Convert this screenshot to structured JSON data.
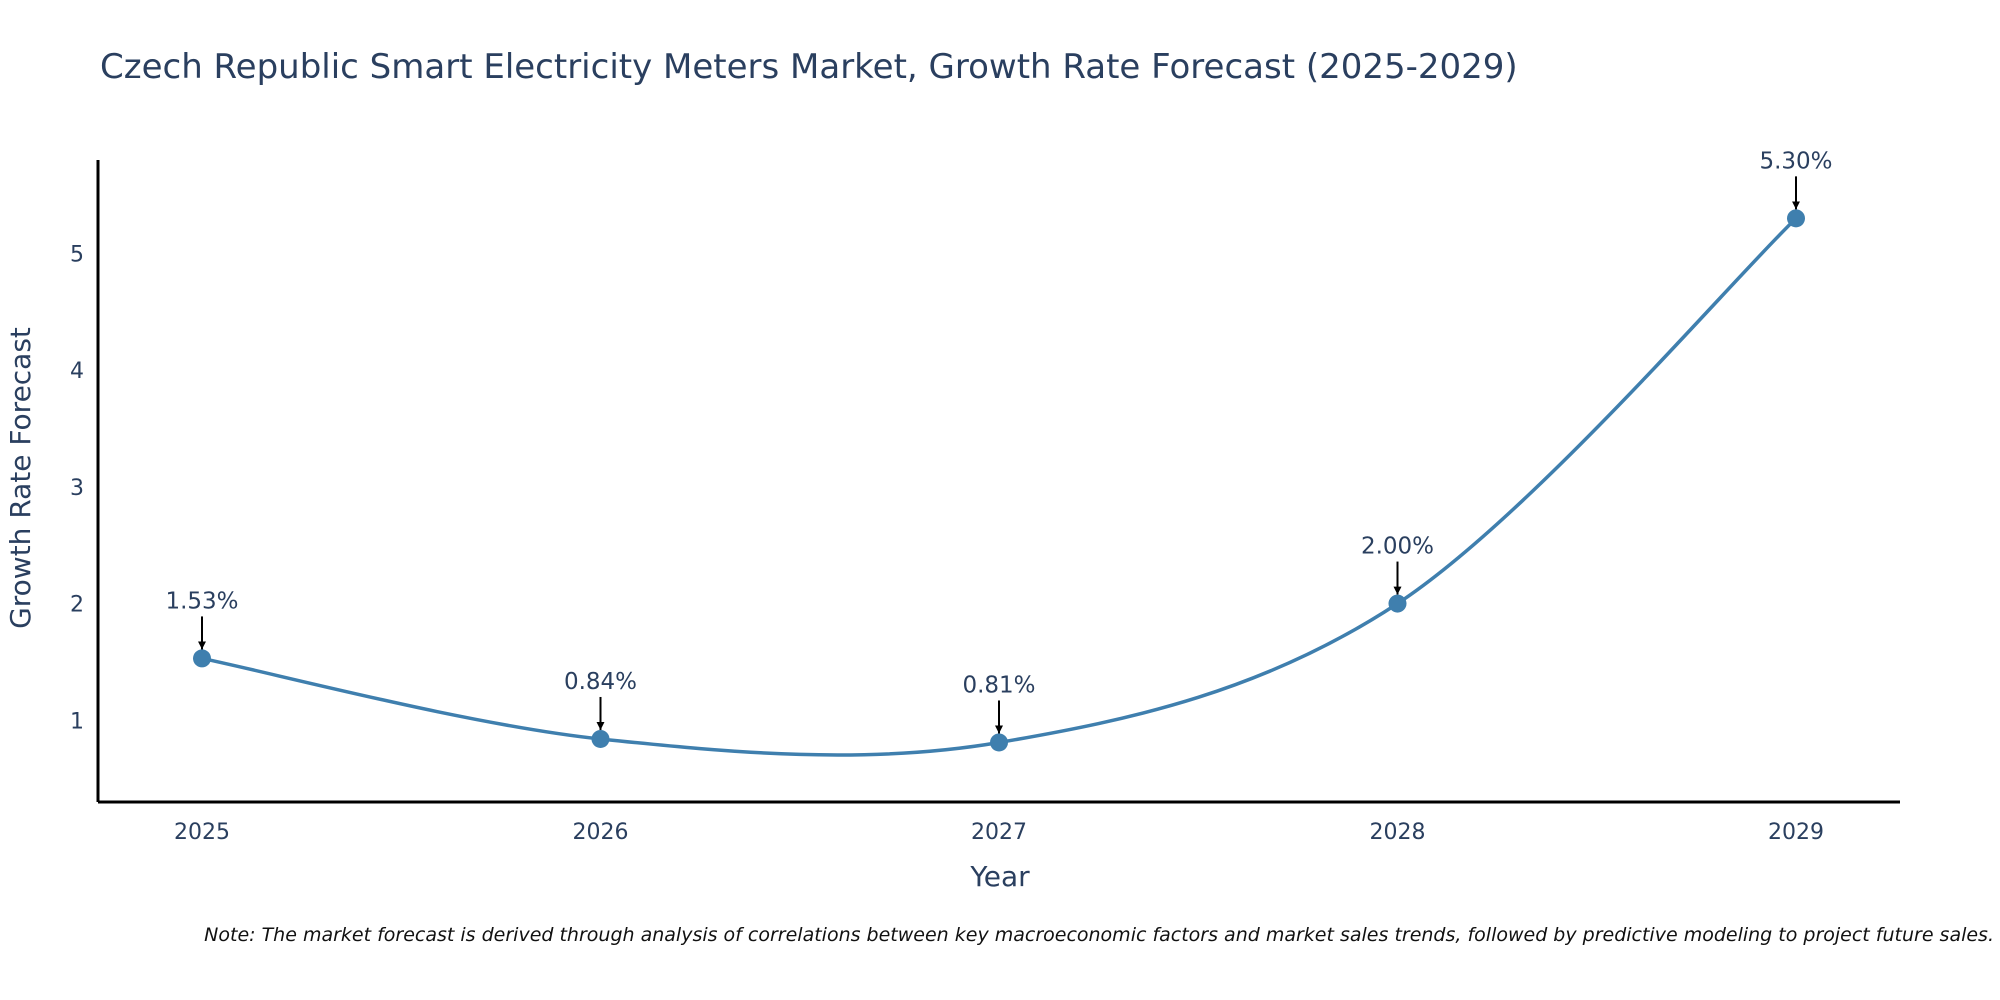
{
  "chart_data": {
    "type": "line",
    "title": "Czech Republic Smart Electricity Meters Market, Growth Rate Forecast (2025-2029)",
    "xlabel": "Year",
    "ylabel": "Growth Rate Forecast",
    "categories": [
      "2025",
      "2026",
      "2027",
      "2028",
      "2029"
    ],
    "values": [
      1.53,
      0.84,
      0.81,
      2.0,
      5.3
    ],
    "data_labels": [
      "1.53%",
      "0.84%",
      "0.81%",
      "2.00%",
      "5.30%"
    ],
    "yticks": [
      "1",
      "2",
      "3",
      "4",
      "5"
    ],
    "ylim": [
      0.3,
      5.8
    ],
    "grid": false,
    "line_shape": "spline",
    "series_color": "#3f7fae",
    "axis_color": "#000000",
    "arrow_color": "#000000"
  },
  "note": "Note: The market forecast is derived through analysis of correlations between key macroeconomic factors and market sales trends, followed by predictive modeling to project future sales."
}
